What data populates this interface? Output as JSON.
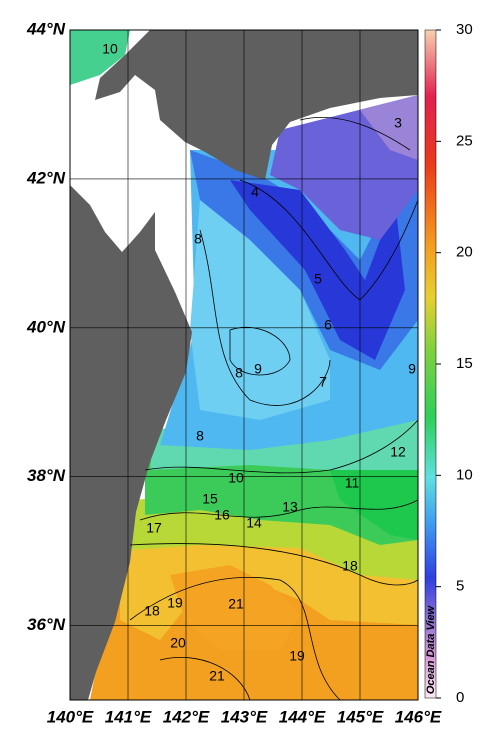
{
  "chart_data": {
    "type": "contour_map",
    "xlim": [
      140,
      146
    ],
    "ylim": [
      35,
      44
    ],
    "xticks": [
      {
        "value": 140,
        "label": "140°E"
      },
      {
        "value": 141,
        "label": "141°E"
      },
      {
        "value": 142,
        "label": "142°E"
      },
      {
        "value": 143,
        "label": "143°E"
      },
      {
        "value": 144,
        "label": "144°E"
      },
      {
        "value": 145,
        "label": "145°E"
      },
      {
        "value": 146,
        "label": "146°E"
      }
    ],
    "yticks": [
      {
        "value": 36,
        "label": "36°N"
      },
      {
        "value": 38,
        "label": "38°N"
      },
      {
        "value": 40,
        "label": "40°N"
      },
      {
        "value": 42,
        "label": "42°N"
      },
      {
        "value": 44,
        "label": "44°N"
      }
    ],
    "colorbar": {
      "lim": [
        0,
        30
      ],
      "ticks": [
        0,
        5,
        10,
        15,
        20,
        25,
        30
      ]
    },
    "contour_labels": [
      10,
      3,
      4,
      8,
      5,
      6,
      9,
      8,
      7,
      9,
      8,
      10,
      12,
      11,
      15,
      16,
      14,
      13,
      17,
      18,
      19,
      18,
      21,
      20,
      21,
      19
    ],
    "watermark": "Ocean Data View",
    "grid": true
  }
}
